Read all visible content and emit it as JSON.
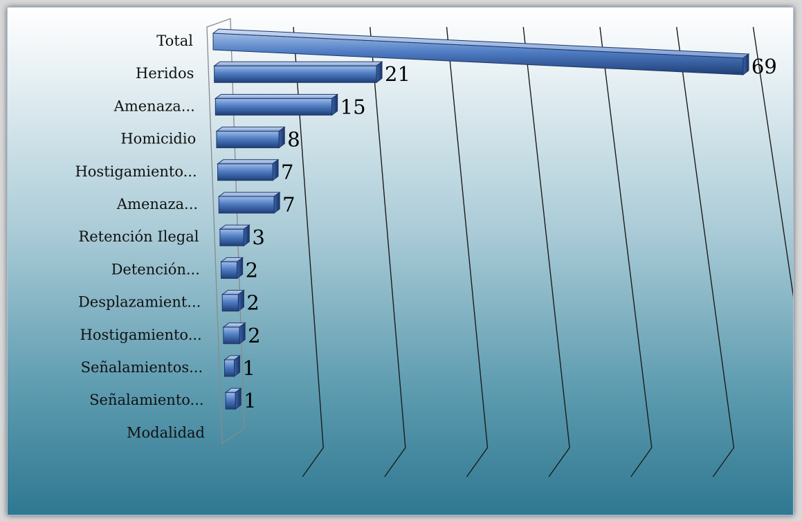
{
  "chart_data": {
    "type": "bar",
    "orientation": "horizontal",
    "style": "3d-perspective",
    "categories": [
      "Total",
      "Heridos",
      "Amenaza...",
      "Homicidio",
      "Hostigamiento...",
      "Amenaza...",
      "Retención Ilegal",
      "Detención...",
      "Desplazamient...",
      "Hostigamiento...",
      "Señalamientos...",
      "Señalamiento...",
      "Modalidad"
    ],
    "values": [
      69,
      21,
      15,
      8,
      7,
      7,
      3,
      2,
      2,
      2,
      1,
      1,
      null
    ],
    "data_labels": [
      "69",
      "21",
      "15",
      "8",
      "7",
      "7",
      "3",
      "2",
      "2",
      "2",
      "1",
      "1",
      ""
    ],
    "title": "",
    "xlabel": "",
    "ylabel": "",
    "xlim": [
      0,
      70
    ],
    "grid": true,
    "legend": "none",
    "bar_color": "#4a74b8"
  }
}
